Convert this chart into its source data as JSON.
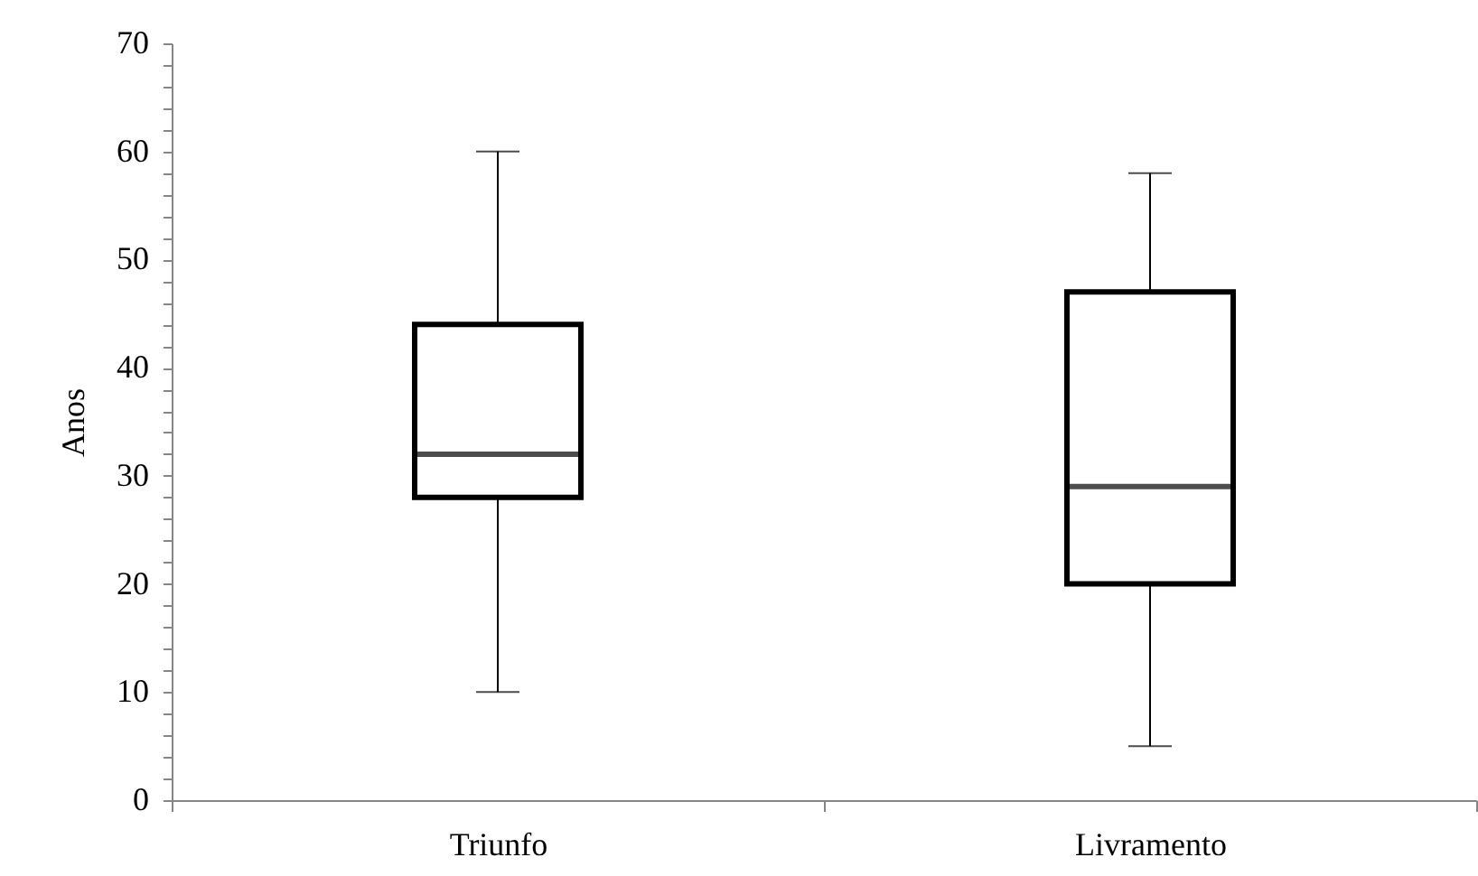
{
  "chart_data": {
    "type": "box",
    "ylabel": "Anos",
    "categories": [
      "Triunfo",
      "Livramento"
    ],
    "boxes": [
      {
        "low": 10,
        "q1": 28,
        "median": 32,
        "q3": 44,
        "high": 60
      },
      {
        "low": 5,
        "q1": 20,
        "median": 29,
        "q3": 47,
        "high": 58
      }
    ],
    "ylim": [
      0,
      70
    ],
    "yticks": [
      0,
      {
        "value": 2,
        "label": null
      },
      {
        "value": 4,
        "label": null
      },
      {
        "value": 6,
        "label": null
      },
      {
        "value": 8,
        "label": null
      },
      10,
      {
        "value": 12,
        "label": null
      },
      {
        "value": 14,
        "label": null
      },
      {
        "value": 16,
        "label": null
      },
      {
        "value": 18,
        "label": null
      },
      20,
      {
        "value": 22,
        "label": null
      },
      {
        "value": 24,
        "label": null
      },
      {
        "value": 26,
        "label": null
      },
      {
        "value": 28,
        "label": null
      },
      30,
      {
        "value": 32,
        "label": null
      },
      {
        "value": 34,
        "label": null
      },
      {
        "value": 36,
        "label": null
      },
      {
        "value": 38,
        "label": null
      },
      40,
      {
        "value": 42,
        "label": null
      },
      {
        "value": 44,
        "label": null
      },
      {
        "value": 46,
        "label": null
      },
      {
        "value": 48,
        "label": null
      },
      50,
      {
        "value": 52,
        "label": null
      },
      {
        "value": 54,
        "label": null
      },
      {
        "value": 56,
        "label": null
      },
      {
        "value": 58,
        "label": null
      },
      60,
      {
        "value": 62,
        "label": null
      },
      {
        "value": 64,
        "label": null
      },
      {
        "value": 66,
        "label": null
      },
      {
        "value": 68,
        "label": null
      },
      70
    ],
    "grid": false
  }
}
